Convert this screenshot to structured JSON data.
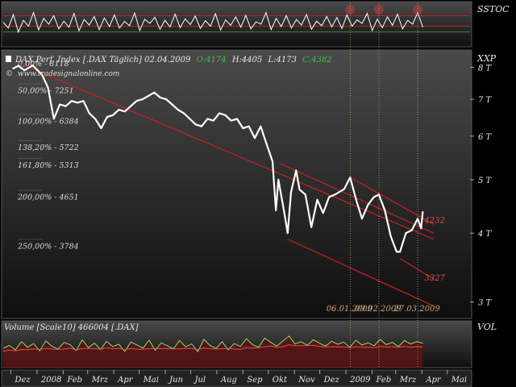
{
  "chart_data": [
    {
      "type": "line",
      "panel": "sstoc",
      "label": "SSTOC",
      "series": [
        {
          "name": "SSTOC",
          "values": [
            55,
            40,
            75,
            30,
            60,
            45,
            80,
            35,
            65,
            50,
            72,
            38,
            58,
            42,
            78,
            33,
            62,
            48,
            70,
            36,
            66,
            44,
            74,
            40,
            57,
            46,
            79,
            34,
            63,
            52,
            68,
            37,
            60,
            43,
            76,
            41,
            64,
            49,
            71,
            39,
            59,
            45,
            77,
            35,
            61,
            47,
            69,
            42,
            73,
            38,
            56,
            50,
            80,
            36,
            65,
            44,
            72,
            40,
            62,
            48,
            75,
            37,
            58,
            46,
            70,
            43,
            67,
            39,
            74,
            45,
            61,
            52,
            78,
            34,
            63,
            41,
            69,
            47,
            76,
            38,
            60,
            50,
            80,
            42
          ]
        }
      ],
      "hlines": [
        72,
        45,
        30
      ],
      "markers": [
        "2009-01-06",
        "2009-02-09",
        "2009-03-27"
      ]
    },
    {
      "type": "line",
      "panel": "price",
      "title": "DAX Perf. Index [.DAX  Täglich] 02.04.2009",
      "ohlc": {
        "open": "O:4174",
        "high": "H:4405",
        "low": "L:4173",
        "close": "C:4382"
      },
      "watermark": "www.tradesignalonline.com",
      "y_axis_label": "XXP",
      "y_ticks": [
        "3 T",
        "4 T",
        "5 T",
        "6 T",
        "7 T",
        "8 T"
      ],
      "ylim": [
        2800,
        8600
      ],
      "x_ticks": [
        "Dez",
        "2008",
        "Feb",
        "Mrz",
        "Apr",
        "Mai",
        "Jun",
        "Jul",
        "Aug",
        "Sep",
        "Okt",
        "Nov",
        "Dez",
        "2009",
        "Feb",
        "Mrz",
        "Apr",
        "Mai"
      ],
      "series": [
        {
          "name": "DAX",
          "points": [
            [
              "2007-12-03",
              7950
            ],
            [
              "2007-12-10",
              8050
            ],
            [
              "2007-12-17",
              7900
            ],
            [
              "2007-12-27",
              8060
            ],
            [
              "2008-01-07",
              7750
            ],
            [
              "2008-01-14",
              7350
            ],
            [
              "2008-01-21",
              6450
            ],
            [
              "2008-01-28",
              6850
            ],
            [
              "2008-02-04",
              6800
            ],
            [
              "2008-02-11",
              6950
            ],
            [
              "2008-02-18",
              6900
            ],
            [
              "2008-02-25",
              6950
            ],
            [
              "2008-03-03",
              6600
            ],
            [
              "2008-03-10",
              6450
            ],
            [
              "2008-03-17",
              6200
            ],
            [
              "2008-03-24",
              6500
            ],
            [
              "2008-03-31",
              6550
            ],
            [
              "2008-04-07",
              6700
            ],
            [
              "2008-04-14",
              6650
            ],
            [
              "2008-04-21",
              6800
            ],
            [
              "2008-04-28",
              6950
            ],
            [
              "2008-05-05",
              7000
            ],
            [
              "2008-05-12",
              7100
            ],
            [
              "2008-05-19",
              7200
            ],
            [
              "2008-05-26",
              7050
            ],
            [
              "2008-06-02",
              7000
            ],
            [
              "2008-06-09",
              6850
            ],
            [
              "2008-06-16",
              6700
            ],
            [
              "2008-06-23",
              6600
            ],
            [
              "2008-06-30",
              6450
            ],
            [
              "2008-07-07",
              6300
            ],
            [
              "2008-07-14",
              6250
            ],
            [
              "2008-07-21",
              6450
            ],
            [
              "2008-07-28",
              6400
            ],
            [
              "2008-08-04",
              6600
            ],
            [
              "2008-08-11",
              6550
            ],
            [
              "2008-08-18",
              6400
            ],
            [
              "2008-08-25",
              6450
            ],
            [
              "2008-09-01",
              6200
            ],
            [
              "2008-09-08",
              6250
            ],
            [
              "2008-09-15",
              5950
            ],
            [
              "2008-09-22",
              6250
            ],
            [
              "2008-09-29",
              5800
            ],
            [
              "2008-10-06",
              5400
            ],
            [
              "2008-10-10",
              4400
            ],
            [
              "2008-10-13",
              5000
            ],
            [
              "2008-10-20",
              4350
            ],
            [
              "2008-10-24",
              4000
            ],
            [
              "2008-10-28",
              4750
            ],
            [
              "2008-11-03",
              5200
            ],
            [
              "2008-11-07",
              4800
            ],
            [
              "2008-11-14",
              4700
            ],
            [
              "2008-11-21",
              4100
            ],
            [
              "2008-11-28",
              4600
            ],
            [
              "2008-12-05",
              4350
            ],
            [
              "2008-12-12",
              4650
            ],
            [
              "2008-12-19",
              4700
            ],
            [
              "2008-12-30",
              4810
            ],
            [
              "2009-01-06",
              5050
            ],
            [
              "2009-01-13",
              4600
            ],
            [
              "2009-01-20",
              4250
            ],
            [
              "2009-01-27",
              4500
            ],
            [
              "2009-02-03",
              4650
            ],
            [
              "2009-02-09",
              4700
            ],
            [
              "2009-02-16",
              4400
            ],
            [
              "2009-02-23",
              3950
            ],
            [
              "2009-03-02",
              3700
            ],
            [
              "2009-03-06",
              3700
            ],
            [
              "2009-03-13",
              4000
            ],
            [
              "2009-03-20",
              4050
            ],
            [
              "2009-03-27",
              4250
            ],
            [
              "2009-03-31",
              4080
            ],
            [
              "2009-04-02",
              4382
            ]
          ]
        }
      ],
      "fib_levels": [
        {
          "label": "0,00% - 8118",
          "value": 8118
        },
        {
          "label": "50,00% - 7251",
          "value": 7251
        },
        {
          "label": "100,00% - 6384",
          "value": 6384
        },
        {
          "label": "138,20% - 5722",
          "value": 5722
        },
        {
          "label": "161,80% - 5313",
          "value": 5313
        },
        {
          "label": "200,00% - 4651",
          "value": 4651
        },
        {
          "label": "250,00% - 3784",
          "value": 3784
        }
      ],
      "channel_lines": [
        {
          "from": [
            "2007-12-10",
            8150
          ],
          "to": [
            "2009-04-15",
            3900
          ]
        },
        {
          "from": [
            "2008-10-15",
            5350
          ],
          "to": [
            "2009-04-15",
            4000
          ]
        },
        {
          "from": [
            "2008-10-24",
            3900
          ],
          "to": [
            "2009-04-15",
            2950
          ]
        },
        {
          "from": [
            "2009-01-06",
            5050
          ],
          "to": [
            "2009-04-15",
            4150
          ]
        },
        {
          "from": [
            "2009-03-06",
            3600
          ],
          "to": [
            "2009-04-15",
            3300
          ]
        }
      ],
      "level_labels": [
        {
          "text": "4232",
          "value": 4232
        },
        {
          "text": "3327",
          "value": 3327
        }
      ],
      "marker_dates": [
        {
          "date": "2009-01-06",
          "label": "06.01.2009"
        },
        {
          "date": "2009-02-09",
          "label": "09.02.2009"
        },
        {
          "date": "2009-03-27",
          "label": "27.03.2009"
        }
      ]
    },
    {
      "type": "area",
      "panel": "volume",
      "title": "Volume [Scale10] 466004 [.DAX]",
      "y_axis_label": "VOL",
      "series": [
        {
          "name": "Volume",
          "values": [
            52,
            60,
            48,
            70,
            55,
            65,
            45,
            72,
            58,
            50,
            68,
            62,
            46,
            75,
            54,
            66,
            49,
            71,
            57,
            63,
            44,
            69,
            61,
            53,
            74,
            47,
            67,
            59,
            51,
            73,
            56,
            64,
            43,
            76,
            60,
            52,
            70,
            48,
            65,
            57,
            78,
            62,
            55,
            80,
            68,
            58,
            72,
            85,
            64,
            70,
            60,
            75,
            66,
            58,
            71,
            63,
            69,
            55,
            74,
            61,
            67,
            59,
            76,
            62,
            68,
            57,
            73,
            64,
            70,
            66
          ]
        }
      ],
      "color_up": "#8ee06a",
      "color_down": "#e05050"
    }
  ],
  "colors": {
    "background": "#000000",
    "panel_grad_top": "#4a4a4a",
    "panel_grad_bottom": "#0e0e0e",
    "price": "#ffffff",
    "trend": "#c22020",
    "fib_text": "#dddddd",
    "ohlc_green": "#3fbf3f",
    "axis_text": "#e8e8e8",
    "marker_line": "#c9a27a"
  }
}
